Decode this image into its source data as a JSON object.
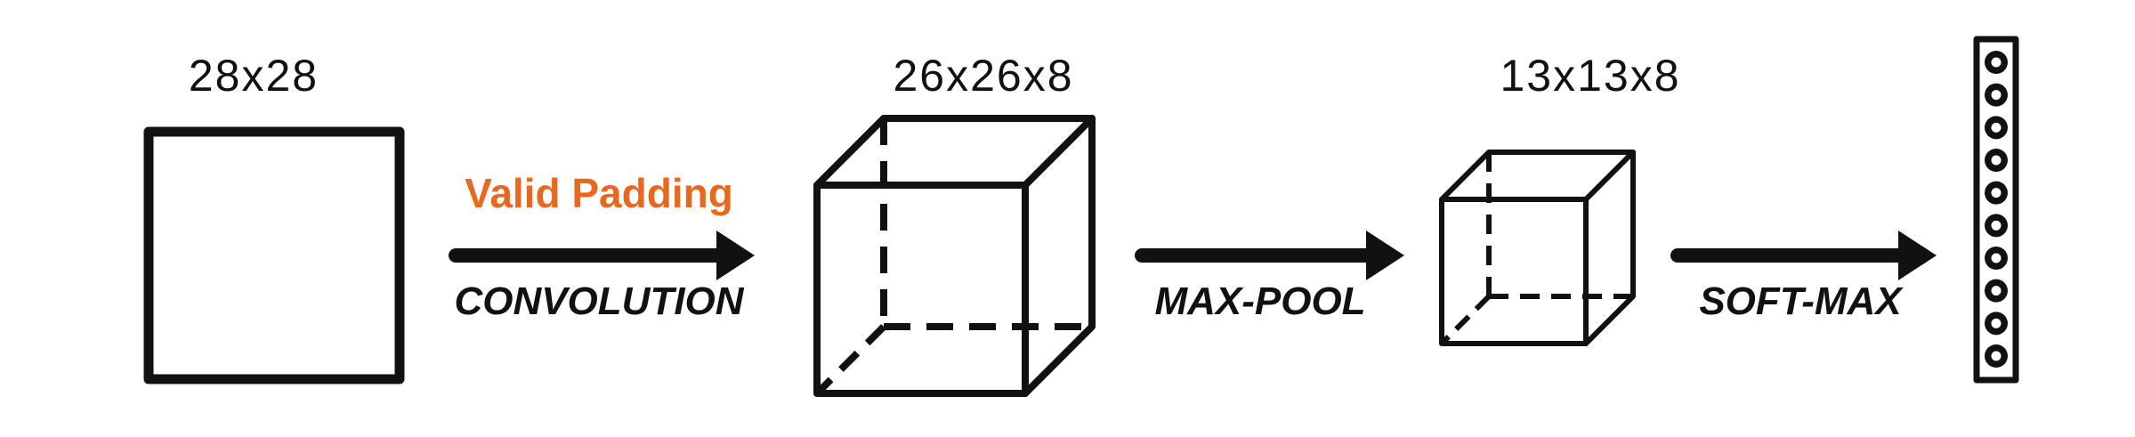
{
  "stages": {
    "input": {
      "dim_label": "28x28"
    },
    "conv_output": {
      "dim_label": "26x26x8"
    },
    "pool_output": {
      "dim_label": "13x13x8"
    },
    "softmax_output": {
      "node_count": 10
    }
  },
  "operations": {
    "convolution": {
      "label": "CONVOLUTION",
      "note": "Valid Padding"
    },
    "max_pool": {
      "label": "MAX-POOL"
    },
    "soft_max": {
      "label": "SOFT-MAX"
    }
  },
  "colors": {
    "stroke": "#111111",
    "note": "#E8691E",
    "background": "#FFFFFF"
  }
}
